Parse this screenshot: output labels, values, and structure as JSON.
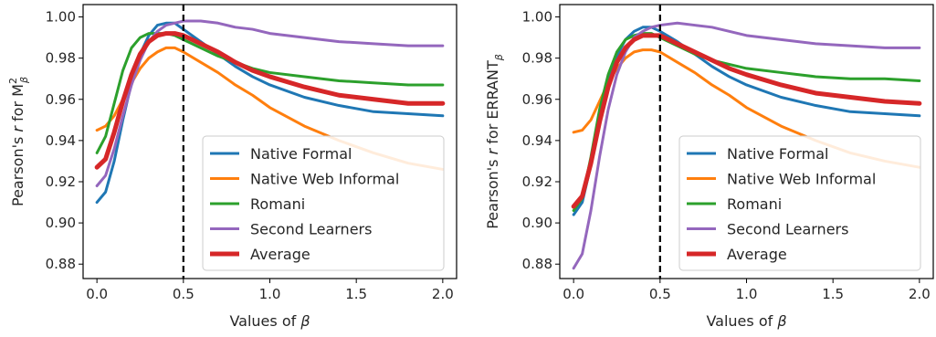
{
  "chart_data": [
    {
      "type": "line",
      "xlabel": "Values of β",
      "ylabel_prefix": "Pearson's ",
      "ylabel_r": "r",
      "ylabel_suffix": " for M",
      "ylabel_sup": "2",
      "ylabel_sub": "β",
      "xlim": [
        -0.08,
        2.08
      ],
      "ylim": [
        0.873,
        1.006
      ],
      "xticks": [
        0.0,
        0.5,
        1.0,
        1.5,
        2.0
      ],
      "xtick_labels": [
        "0.0",
        "0.5",
        "1.0",
        "1.5",
        "2.0"
      ],
      "yticks": [
        0.88,
        0.9,
        0.92,
        0.94,
        0.96,
        0.98,
        1.0
      ],
      "ytick_labels": [
        "0.88",
        "0.90",
        "0.92",
        "0.94",
        "0.96",
        "0.98",
        "1.00"
      ],
      "vline": {
        "x": 0.5,
        "style": "dashed",
        "color": "#000000"
      },
      "legend": "lower-right",
      "grid": false,
      "series": [
        {
          "name": "Native Formal",
          "color": "#1f77b4",
          "width": 3,
          "x": [
            0,
            0.05,
            0.1,
            0.15,
            0.2,
            0.25,
            0.3,
            0.35,
            0.4,
            0.45,
            0.5,
            0.6,
            0.7,
            0.8,
            0.9,
            1.0,
            1.2,
            1.4,
            1.6,
            1.8,
            2.0
          ],
          "y": [
            0.91,
            0.915,
            0.93,
            0.95,
            0.968,
            0.982,
            0.991,
            0.996,
            0.997,
            0.997,
            0.994,
            0.988,
            0.982,
            0.976,
            0.971,
            0.967,
            0.961,
            0.957,
            0.954,
            0.953,
            0.952
          ]
        },
        {
          "name": "Native Web Informal",
          "color": "#ff7f0e",
          "width": 3,
          "x": [
            0,
            0.05,
            0.1,
            0.15,
            0.2,
            0.25,
            0.3,
            0.35,
            0.4,
            0.45,
            0.5,
            0.6,
            0.7,
            0.8,
            0.9,
            1.0,
            1.2,
            1.4,
            1.6,
            1.8,
            2.0
          ],
          "y": [
            0.945,
            0.947,
            0.952,
            0.96,
            0.968,
            0.975,
            0.98,
            0.983,
            0.985,
            0.985,
            0.983,
            0.978,
            0.973,
            0.967,
            0.962,
            0.956,
            0.947,
            0.94,
            0.934,
            0.929,
            0.926
          ]
        },
        {
          "name": "Romani",
          "color": "#2ca02c",
          "width": 3,
          "x": [
            0,
            0.05,
            0.1,
            0.15,
            0.2,
            0.25,
            0.3,
            0.35,
            0.4,
            0.45,
            0.5,
            0.6,
            0.7,
            0.8,
            0.9,
            1.0,
            1.2,
            1.4,
            1.6,
            1.8,
            2.0
          ],
          "y": [
            0.934,
            0.942,
            0.958,
            0.974,
            0.985,
            0.99,
            0.992,
            0.992,
            0.992,
            0.991,
            0.989,
            0.985,
            0.981,
            0.978,
            0.975,
            0.973,
            0.971,
            0.969,
            0.968,
            0.967,
            0.967
          ]
        },
        {
          "name": "Second Learners",
          "color": "#9467bd",
          "width": 3,
          "x": [
            0,
            0.05,
            0.1,
            0.15,
            0.2,
            0.25,
            0.3,
            0.35,
            0.4,
            0.45,
            0.5,
            0.6,
            0.7,
            0.8,
            0.9,
            1.0,
            1.2,
            1.4,
            1.6,
            1.8,
            2.0
          ],
          "y": [
            0.918,
            0.923,
            0.936,
            0.952,
            0.967,
            0.979,
            0.988,
            0.993,
            0.996,
            0.997,
            0.998,
            0.998,
            0.997,
            0.995,
            0.994,
            0.992,
            0.99,
            0.988,
            0.987,
            0.986,
            0.986
          ]
        },
        {
          "name": "Average",
          "color": "#d62728",
          "width": 5,
          "x": [
            0,
            0.05,
            0.1,
            0.15,
            0.2,
            0.25,
            0.3,
            0.35,
            0.4,
            0.45,
            0.5,
            0.6,
            0.7,
            0.8,
            0.9,
            1.0,
            1.2,
            1.4,
            1.6,
            1.8,
            2.0
          ],
          "y": [
            0.927,
            0.931,
            0.944,
            0.959,
            0.972,
            0.982,
            0.988,
            0.991,
            0.992,
            0.992,
            0.991,
            0.987,
            0.983,
            0.978,
            0.974,
            0.971,
            0.966,
            0.962,
            0.96,
            0.958,
            0.958
          ]
        }
      ]
    },
    {
      "type": "line",
      "xlabel": "Values of β",
      "ylabel_prefix": "Pearson's ",
      "ylabel_r": "r",
      "ylabel_suffix": " for ERRANT",
      "ylabel_sup": "",
      "ylabel_sub": "β",
      "xlim": [
        -0.08,
        2.08
      ],
      "ylim": [
        0.873,
        1.006
      ],
      "xticks": [
        0.0,
        0.5,
        1.0,
        1.5,
        2.0
      ],
      "xtick_labels": [
        "0.0",
        "0.5",
        "1.0",
        "1.5",
        "2.0"
      ],
      "yticks": [
        0.88,
        0.9,
        0.92,
        0.94,
        0.96,
        0.98,
        1.0
      ],
      "ytick_labels": [
        "0.88",
        "0.90",
        "0.92",
        "0.94",
        "0.96",
        "0.98",
        "1.00"
      ],
      "vline": {
        "x": 0.5,
        "style": "dashed",
        "color": "#000000"
      },
      "legend": "lower-right",
      "grid": false,
      "series": [
        {
          "name": "Native Formal",
          "color": "#1f77b4",
          "width": 3,
          "x": [
            0,
            0.05,
            0.1,
            0.15,
            0.2,
            0.25,
            0.3,
            0.35,
            0.4,
            0.45,
            0.5,
            0.6,
            0.7,
            0.8,
            0.9,
            1.0,
            1.2,
            1.4,
            1.6,
            1.8,
            2.0
          ],
          "y": [
            0.904,
            0.91,
            0.928,
            0.95,
            0.968,
            0.981,
            0.989,
            0.993,
            0.995,
            0.995,
            0.993,
            0.988,
            0.982,
            0.976,
            0.971,
            0.967,
            0.961,
            0.957,
            0.954,
            0.953,
            0.952
          ]
        },
        {
          "name": "Native Web Informal",
          "color": "#ff7f0e",
          "width": 3,
          "x": [
            0,
            0.05,
            0.1,
            0.15,
            0.2,
            0.25,
            0.3,
            0.35,
            0.4,
            0.45,
            0.5,
            0.6,
            0.7,
            0.8,
            0.9,
            1.0,
            1.2,
            1.4,
            1.6,
            1.8,
            2.0
          ],
          "y": [
            0.944,
            0.945,
            0.95,
            0.959,
            0.968,
            0.975,
            0.98,
            0.983,
            0.984,
            0.984,
            0.983,
            0.978,
            0.973,
            0.967,
            0.962,
            0.956,
            0.947,
            0.94,
            0.934,
            0.93,
            0.927
          ]
        },
        {
          "name": "Romani",
          "color": "#2ca02c",
          "width": 3,
          "x": [
            0,
            0.05,
            0.1,
            0.15,
            0.2,
            0.25,
            0.3,
            0.35,
            0.4,
            0.45,
            0.5,
            0.6,
            0.7,
            0.8,
            0.9,
            1.0,
            1.2,
            1.4,
            1.6,
            1.8,
            2.0
          ],
          "y": [
            0.906,
            0.912,
            0.932,
            0.955,
            0.972,
            0.983,
            0.989,
            0.991,
            0.992,
            0.992,
            0.99,
            0.986,
            0.982,
            0.979,
            0.977,
            0.975,
            0.973,
            0.971,
            0.97,
            0.97,
            0.969
          ]
        },
        {
          "name": "Second Learners",
          "color": "#9467bd",
          "width": 3,
          "x": [
            0,
            0.05,
            0.1,
            0.15,
            0.2,
            0.25,
            0.3,
            0.35,
            0.4,
            0.45,
            0.5,
            0.6,
            0.7,
            0.8,
            0.9,
            1.0,
            1.2,
            1.4,
            1.6,
            1.8,
            2.0
          ],
          "y": [
            0.878,
            0.885,
            0.906,
            0.932,
            0.955,
            0.972,
            0.983,
            0.99,
            0.993,
            0.995,
            0.996,
            0.997,
            0.996,
            0.995,
            0.993,
            0.991,
            0.989,
            0.987,
            0.986,
            0.985,
            0.985
          ]
        },
        {
          "name": "Average",
          "color": "#d62728",
          "width": 5,
          "x": [
            0,
            0.05,
            0.1,
            0.15,
            0.2,
            0.25,
            0.3,
            0.35,
            0.4,
            0.45,
            0.5,
            0.6,
            0.7,
            0.8,
            0.9,
            1.0,
            1.2,
            1.4,
            1.6,
            1.8,
            2.0
          ],
          "y": [
            0.908,
            0.913,
            0.929,
            0.949,
            0.966,
            0.978,
            0.985,
            0.989,
            0.991,
            0.991,
            0.991,
            0.987,
            0.983,
            0.979,
            0.975,
            0.972,
            0.967,
            0.963,
            0.961,
            0.959,
            0.958
          ]
        }
      ]
    }
  ]
}
